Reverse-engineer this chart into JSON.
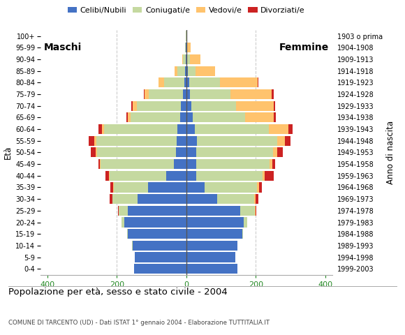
{
  "age_groups": [
    "100+",
    "95-99",
    "90-94",
    "85-89",
    "80-84",
    "75-79",
    "70-74",
    "65-69",
    "60-64",
    "55-59",
    "50-54",
    "45-49",
    "40-44",
    "35-39",
    "30-34",
    "25-29",
    "20-24",
    "15-19",
    "10-14",
    "5-9",
    "0-4"
  ],
  "birth_years": [
    "1903 o prima",
    "1904-1908",
    "1909-1913",
    "1914-1918",
    "1919-1923",
    "1924-1928",
    "1929-1933",
    "1934-1938",
    "1939-1943",
    "1944-1948",
    "1949-1953",
    "1954-1958",
    "1959-1963",
    "1964-1968",
    "1969-1973",
    "1974-1978",
    "1979-1983",
    "1984-1988",
    "1989-1993",
    "1994-1998",
    "1999-2003"
  ],
  "males": {
    "celibe": [
      0,
      1,
      2,
      3,
      5,
      10,
      15,
      18,
      25,
      28,
      30,
      35,
      58,
      110,
      140,
      168,
      178,
      168,
      155,
      148,
      150
    ],
    "coniugato": [
      2,
      3,
      8,
      22,
      58,
      98,
      128,
      142,
      212,
      232,
      228,
      212,
      162,
      98,
      72,
      26,
      8,
      2,
      1,
      0,
      0
    ],
    "vedovo": [
      0,
      0,
      2,
      8,
      18,
      12,
      12,
      8,
      5,
      5,
      3,
      2,
      2,
      2,
      1,
      0,
      0,
      0,
      0,
      0,
      0
    ],
    "divorziato": [
      0,
      0,
      0,
      0,
      0,
      2,
      3,
      5,
      12,
      16,
      14,
      5,
      10,
      8,
      7,
      2,
      1,
      0,
      0,
      0,
      0
    ]
  },
  "females": {
    "nubile": [
      1,
      1,
      3,
      5,
      8,
      10,
      15,
      18,
      25,
      30,
      28,
      28,
      28,
      52,
      88,
      155,
      165,
      162,
      148,
      142,
      148
    ],
    "coniugata": [
      0,
      2,
      8,
      22,
      88,
      118,
      128,
      152,
      212,
      232,
      222,
      212,
      192,
      152,
      108,
      42,
      10,
      2,
      0,
      0,
      0
    ],
    "vedova": [
      2,
      10,
      30,
      55,
      110,
      118,
      108,
      82,
      58,
      22,
      12,
      8,
      6,
      5,
      3,
      2,
      0,
      0,
      0,
      0,
      0
    ],
    "divorziata": [
      0,
      0,
      0,
      0,
      2,
      5,
      5,
      5,
      12,
      16,
      15,
      8,
      25,
      8,
      8,
      3,
      1,
      0,
      0,
      0,
      0
    ]
  },
  "colors": {
    "celibe": "#4472c4",
    "coniugato": "#c5d9a0",
    "vedovo": "#ffc36d",
    "divorziato": "#cc2222"
  },
  "xlim": 420,
  "title": "Popolazione per età, sesso e stato civile - 2004",
  "subtitle": "COMUNE DI TARCENTO (UD) - Dati ISTAT 1° gennaio 2004 - Elaborazione TUTTITALIA.IT",
  "legend_labels": [
    "Celibi/Nubili",
    "Coniugati/e",
    "Vedovi/e",
    "Divorziati/e"
  ],
  "ylabel_left": "Età",
  "ylabel_right": "Anno di nascita",
  "bg_color": "#ffffff",
  "grid_color": "#cccccc"
}
